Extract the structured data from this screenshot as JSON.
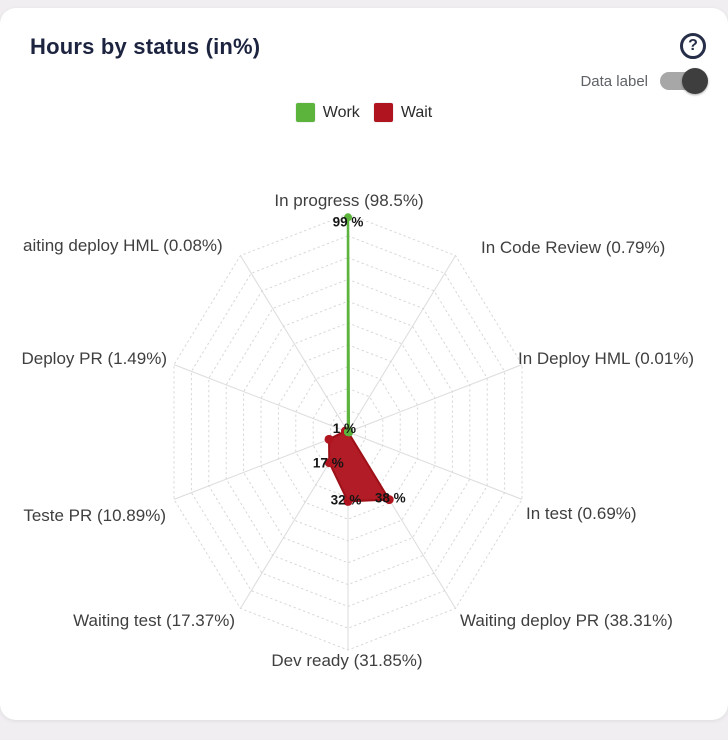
{
  "card": {
    "title": "Hours by status (in%)"
  },
  "controls": {
    "help_glyph": "?",
    "data_label_toggle": {
      "label": "Data label",
      "state": "on"
    }
  },
  "legend": [
    {
      "name": "Work",
      "color": "#5cb43d"
    },
    {
      "name": "Wait",
      "color": "#b0151f"
    }
  ],
  "colors": {
    "title": "#1d2440",
    "axis_label": "#3f3f3f",
    "data_label": "#151515",
    "ring": "#d7d7d7",
    "spoke": "#dcdbde",
    "work": "#5cb43d",
    "wait": "#b0151f",
    "wait_stroke": "#9e1018"
  },
  "chart_data": {
    "type": "radar",
    "title": "Hours by status (in%)",
    "max": 100,
    "rings": 10,
    "grid": "dotted",
    "legend_position": "top-center",
    "categories": [
      {
        "label": "In progress (98.5%)",
        "status": "In progress",
        "axis_pct": 98.5
      },
      {
        "label": "In Code Review (0.79%)",
        "status": "In Code Review",
        "axis_pct": 0.79
      },
      {
        "label": "In Deploy HML (0.01%)",
        "status": "In Deploy HML",
        "axis_pct": 0.01
      },
      {
        "label": "In test (0.69%)",
        "status": "In test",
        "axis_pct": 0.69
      },
      {
        "label": "Waiting deploy PR (38.31%)",
        "status": "Waiting deploy PR",
        "axis_pct": 38.31
      },
      {
        "label": "Dev ready (31.85%)",
        "status": "Dev ready",
        "axis_pct": 31.85
      },
      {
        "label": "Waiting test (17.37%)",
        "status": "Waiting test",
        "axis_pct": 17.37
      },
      {
        "label": "Teste PR (10.89%)",
        "status": "Teste PR",
        "axis_pct": 10.89
      },
      {
        "label": "Deploy PR (1.49%)",
        "status": "Deploy PR",
        "axis_pct": 1.49
      },
      {
        "label": "aiting deploy HML (0.08%)",
        "status": "aiting deploy HML",
        "axis_pct": 0.08
      }
    ],
    "series": [
      {
        "name": "Work",
        "color": "#5cb43d",
        "values": [
          98.5,
          0.79,
          0.01,
          0.69,
          0,
          0,
          0,
          0,
          0,
          0
        ]
      },
      {
        "name": "Wait",
        "color": "#b0151f",
        "values": [
          0,
          0,
          0,
          0,
          38.31,
          31.85,
          17.37,
          10.89,
          1.49,
          0.08
        ]
      }
    ],
    "data_labels": [
      {
        "text": "99 %",
        "series": "Work",
        "axis_index": 0,
        "value": 98.5
      },
      {
        "text": "1 %",
        "series": "Wait",
        "axis_index": 8,
        "value": 1.49
      },
      {
        "text": "17 %",
        "series": "Wait",
        "axis_index": 6,
        "value": 17.37
      },
      {
        "text": "32 %",
        "series": "Wait",
        "axis_index": 5,
        "value": 31.85
      },
      {
        "text": "38 %",
        "series": "Wait",
        "axis_index": 4,
        "value": 38.31
      }
    ]
  }
}
